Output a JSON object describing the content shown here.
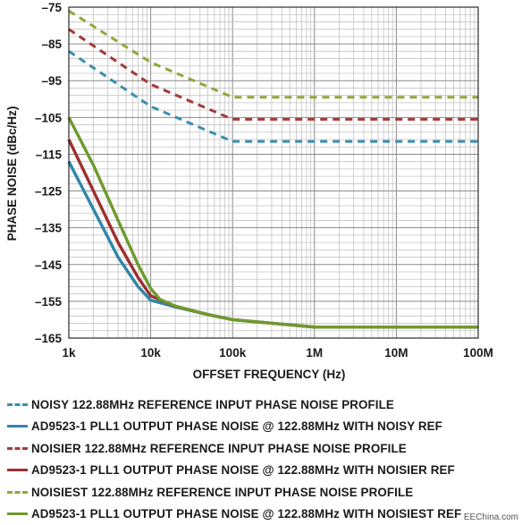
{
  "chart_data": {
    "type": "line",
    "xlabel": "OFFSET FREQUENCY (Hz)",
    "ylabel": "PHASE NOISE (dBc/Hz)",
    "x_scale": "log",
    "xlim": [
      1000,
      100000000
    ],
    "ylim": [
      -165,
      -75
    ],
    "grid": true,
    "legend_position": "bottom",
    "x_ticks": [
      {
        "value": 1000,
        "label": "1k"
      },
      {
        "value": 10000,
        "label": "10k"
      },
      {
        "value": 100000,
        "label": "100k"
      },
      {
        "value": 1000000,
        "label": "1M"
      },
      {
        "value": 10000000,
        "label": "10M"
      },
      {
        "value": 100000000,
        "label": "100M"
      }
    ],
    "y_ticks": [
      {
        "value": -75,
        "label": "–75"
      },
      {
        "value": -85,
        "label": "–85"
      },
      {
        "value": -95,
        "label": "–95"
      },
      {
        "value": -105,
        "label": "–105"
      },
      {
        "value": -115,
        "label": "–115"
      },
      {
        "value": -125,
        "label": "–125"
      },
      {
        "value": -135,
        "label": "–135"
      },
      {
        "value": -145,
        "label": "–145"
      },
      {
        "value": -155,
        "label": "–155"
      },
      {
        "value": -165,
        "label": "–165"
      }
    ],
    "series": [
      {
        "name": "NOISY 122.88MHz REFERENCE INPUT PHASE NOISE PROFILE",
        "color": "#3a8fb0",
        "style": "dashed",
        "x": [
          1000,
          10000,
          100000,
          1000000,
          10000000,
          100000000
        ],
        "values": [
          -87,
          -102,
          -111.5,
          -111.5,
          -111.5,
          -111.5
        ]
      },
      {
        "name": "AD9523-1 PLL1 OUTPUT PHASE NOISE @ 122.88MHz WITH NOISY REF",
        "color": "#2f86a8",
        "style": "solid",
        "x": [
          1000,
          2000,
          4000,
          7000,
          10000,
          20000,
          50000,
          100000,
          1000000,
          10000000,
          100000000
        ],
        "values": [
          -117,
          -130,
          -143,
          -151,
          -154.7,
          -156.5,
          -158.6,
          -160,
          -162,
          -162,
          -162
        ]
      },
      {
        "name": "NOISIER 122.88MHz REFERENCE INPUT PHASE NOISE PROFILE",
        "color": "#a33a3a",
        "style": "dashed",
        "x": [
          1000,
          10000,
          100000,
          1000000,
          10000000,
          100000000
        ],
        "values": [
          -81,
          -96,
          -105.5,
          -105.5,
          -105.5,
          -105.5
        ]
      },
      {
        "name": "AD9523-1 PLL1 OUTPUT PHASE NOISE @ 122.88MHz WITH NOISIER REF",
        "color": "#9e2f2f",
        "style": "solid",
        "x": [
          1000,
          2000,
          4000,
          7000,
          10000,
          20000,
          50000,
          100000,
          1000000,
          10000000,
          100000000
        ],
        "values": [
          -111,
          -125,
          -139,
          -148.5,
          -153.5,
          -156.4,
          -158.6,
          -160,
          -162,
          -162,
          -162
        ]
      },
      {
        "name": "NOISIEST 122.88MHz REFERENCE INPUT PHASE NOISE PROFILE",
        "color": "#8fa83c",
        "style": "dashed",
        "x": [
          1000,
          10000,
          100000,
          1000000,
          10000000,
          100000000
        ],
        "values": [
          -76,
          -90,
          -99.5,
          -99.5,
          -99.5,
          -99.5
        ]
      },
      {
        "name": "AD9523-1 PLL1 OUTPUT PHASE NOISE @ 122.88MHz WITH NOISIEST REF",
        "color": "#6e9a2e",
        "style": "solid",
        "x": [
          1000,
          2000,
          4000,
          7000,
          10000,
          13000,
          20000,
          50000,
          100000,
          1000000,
          10000000,
          100000000
        ],
        "values": [
          -105,
          -118,
          -133,
          -145,
          -151.5,
          -154.5,
          -156.3,
          -158.6,
          -160,
          -162,
          -162,
          -162
        ]
      }
    ]
  },
  "watermark": "EEChina.com"
}
